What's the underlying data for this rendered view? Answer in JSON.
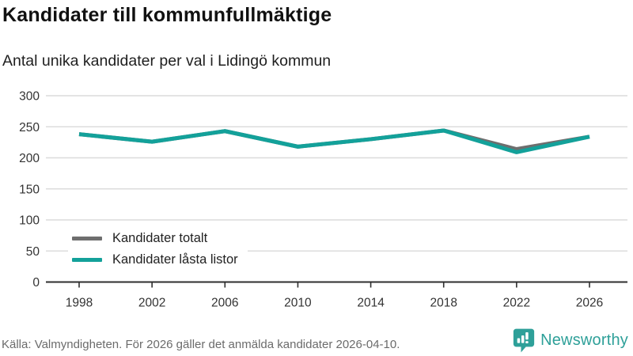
{
  "title": "Kandidater till kommunfullmäktige",
  "subtitle": "Antal unika kandidater per val i Lidingö kommun",
  "footer": {
    "source": "Källa: Valmyndigheten. För 2026 gäller det anmälda kandidater 2026-04-10."
  },
  "branding": {
    "name": "Newsworthy",
    "icon": "speech-bubble-bar-chart-icon",
    "color": "#2ea099"
  },
  "legend": {
    "items": [
      {
        "label": "Kandidater totalt",
        "color": "#6e6e6e"
      },
      {
        "label": "Kandidater låsta listor",
        "color": "#13a19a"
      }
    ]
  },
  "colors": {
    "grid": "#dcdcdc",
    "axis": "#2e2e2e",
    "tick_label": "#333333"
  },
  "chart_data": {
    "type": "line",
    "title": "Kandidater till kommunfullmäktige",
    "subtitle": "Antal unika kandidater per val i Lidingö kommun",
    "x": [
      1998,
      2002,
      2006,
      2010,
      2014,
      2018,
      2022,
      2026
    ],
    "series": [
      {
        "name": "Kandidater totalt",
        "color": "#6e6e6e",
        "values": [
          238,
          226,
          243,
          218,
          230,
          244,
          214,
          234
        ]
      },
      {
        "name": "Kandidater låsta listor",
        "color": "#13a19a",
        "values": [
          238,
          226,
          243,
          218,
          230,
          244,
          209,
          234
        ]
      }
    ],
    "xticks": [
      1998,
      2002,
      2006,
      2010,
      2014,
      2018,
      2022,
      2026
    ],
    "yticks": [
      0,
      50,
      100,
      150,
      200,
      250,
      300
    ],
    "ylim": [
      0,
      300
    ],
    "grid": true,
    "legend_position": "inside-bottom-left"
  }
}
